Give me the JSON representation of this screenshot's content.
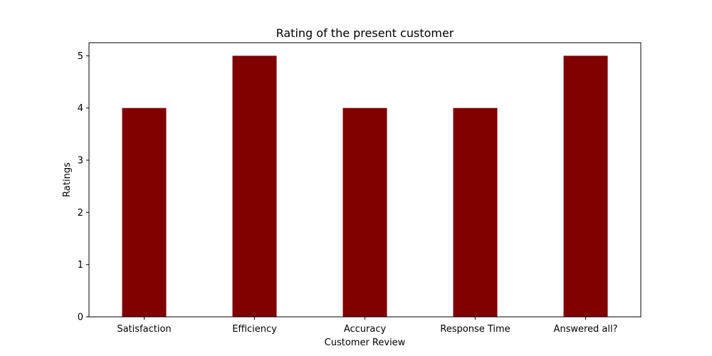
{
  "chart_data": {
    "type": "bar",
    "title": "Rating of the present customer",
    "xlabel": "Customer Review",
    "ylabel": "Ratings",
    "categories": [
      "Satisfaction",
      "Efficiency",
      "Accuracy",
      "Response Time",
      "Answered all?"
    ],
    "values": [
      4,
      5,
      4,
      4,
      5
    ],
    "ylim": [
      0,
      5.25
    ],
    "yticks": [
      0,
      1,
      2,
      3,
      4,
      5
    ],
    "bar_color": "#800000",
    "grid": false,
    "legend": "none"
  }
}
